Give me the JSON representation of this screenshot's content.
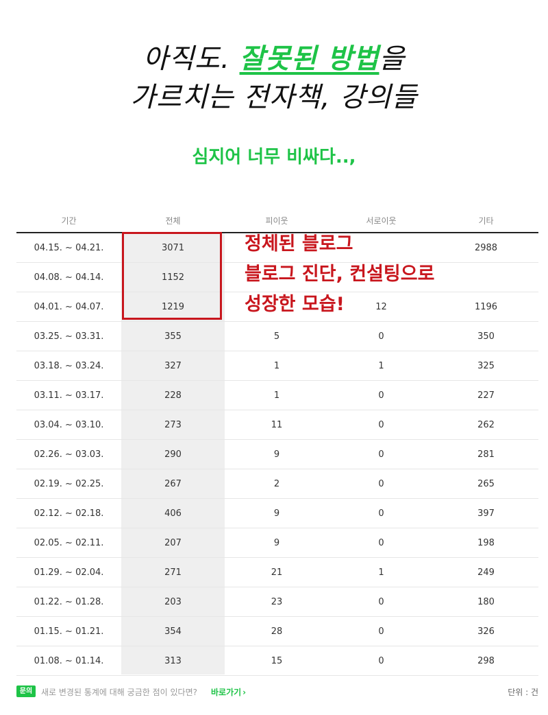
{
  "headline": {
    "line1_prefix": "아직도. ",
    "line1_highlight": "잘못된 방법",
    "line1_suffix": "을",
    "line2": "가르치는 전자책, 강의들"
  },
  "subhead": "심지어 너무 비싸다..,",
  "table": {
    "headers": [
      "기간",
      "전체",
      "피이웃",
      "서로이웃",
      "기타"
    ],
    "rows": [
      [
        "04.15. ~ 04.21.",
        "3071",
        "",
        "",
        "2988"
      ],
      [
        "04.08. ~ 04.14.",
        "1152",
        "",
        "",
        ""
      ],
      [
        "04.01. ~ 04.07.",
        "1219",
        "",
        "12",
        "1196"
      ],
      [
        "03.25. ~ 03.31.",
        "355",
        "5",
        "0",
        "350"
      ],
      [
        "03.18. ~ 03.24.",
        "327",
        "1",
        "1",
        "325"
      ],
      [
        "03.11. ~ 03.17.",
        "228",
        "1",
        "0",
        "227"
      ],
      [
        "03.04. ~ 03.10.",
        "273",
        "11",
        "0",
        "262"
      ],
      [
        "02.26. ~ 03.03.",
        "290",
        "9",
        "0",
        "281"
      ],
      [
        "02.19. ~ 02.25.",
        "267",
        "2",
        "0",
        "265"
      ],
      [
        "02.12. ~ 02.18.",
        "406",
        "9",
        "0",
        "397"
      ],
      [
        "02.05. ~ 02.11.",
        "207",
        "9",
        "0",
        "198"
      ],
      [
        "01.29. ~ 02.04.",
        "271",
        "21",
        "1",
        "249"
      ],
      [
        "01.22. ~ 01.28.",
        "203",
        "23",
        "0",
        "180"
      ],
      [
        "01.15. ~ 01.21.",
        "354",
        "28",
        "0",
        "326"
      ],
      [
        "01.08. ~ 01.14.",
        "313",
        "15",
        "0",
        "298"
      ]
    ]
  },
  "overlay": {
    "lines": [
      "정체된 블로그",
      "블로그 진단, 컨설팅으로",
      "성장한 모습!"
    ]
  },
  "footer": {
    "badge": "문의",
    "text": "새로 변경된 통계에 대해 궁금한 점이 있다면?",
    "link": "바로가기",
    "link_icon": "chevron-right-icon",
    "unit": "단위 : 건"
  },
  "colors": {
    "accent_green": "#1ec347",
    "highlight_red": "#c8161d"
  }
}
